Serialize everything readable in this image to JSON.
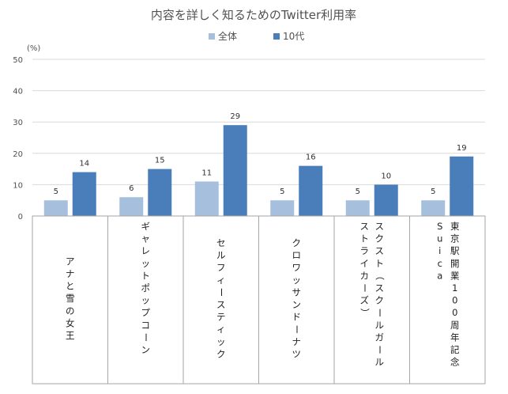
{
  "chart_data": {
    "type": "bar",
    "title": "内容を詳しく知るためのTwitter利用率",
    "unit_label": "(%)",
    "ylim": [
      0,
      50
    ],
    "yticks": [
      0,
      10,
      20,
      30,
      40,
      50
    ],
    "grid": true,
    "legend_position": "top-center",
    "categories": [
      "アナと雪の女王",
      "ギャレットポップコーン",
      "セルフィースティック",
      "クロワッサンドーナツ",
      "スクスト（スクールガールストライカーズ）",
      "東京駅開業100周年記念Suica"
    ],
    "category_lines": [
      [
        "アナと雪の女王"
      ],
      [
        "ギャレットポップコーン"
      ],
      [
        "セルフィースティック"
      ],
      [
        "クロワッサンドーナツ"
      ],
      [
        "スクスト（スクールガール",
        "ストライカーズ）"
      ],
      [
        "東京駅開業100周年記念",
        "Suica"
      ]
    ],
    "series": [
      {
        "name": "全体",
        "color": "#a5bfdd",
        "values": [
          5,
          6,
          11,
          5,
          5,
          5
        ]
      },
      {
        "name": "10代",
        "color": "#4a7ebb",
        "values": [
          14,
          15,
          29,
          16,
          10,
          19
        ]
      }
    ]
  }
}
